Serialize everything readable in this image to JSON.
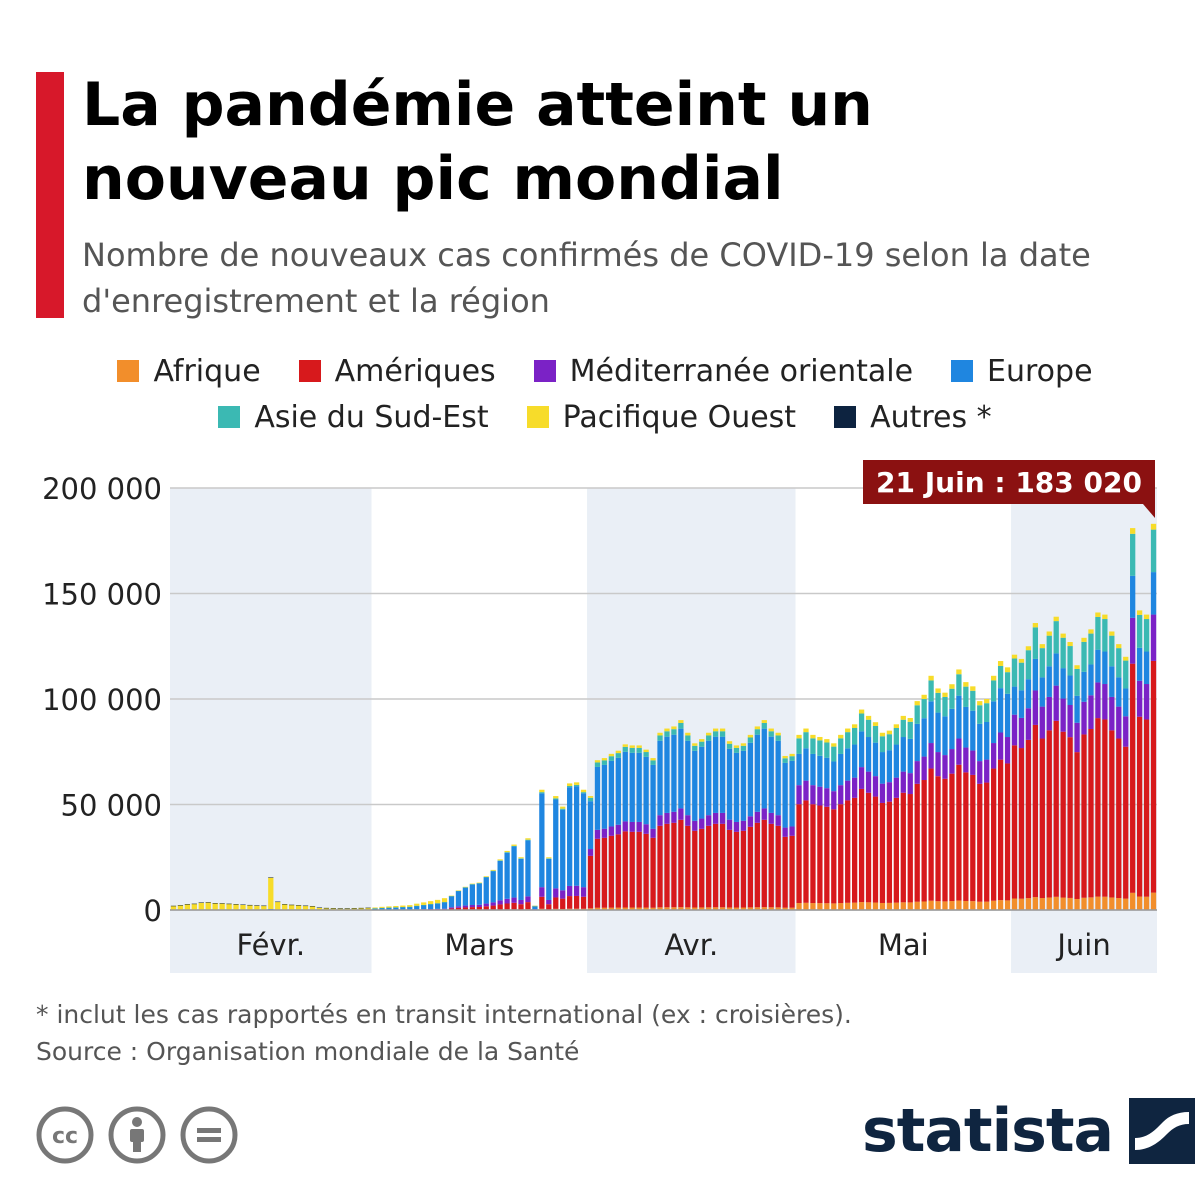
{
  "header": {
    "title": "La pandémie atteint un nouveau pic mondial",
    "subtitle": "Nombre de nouveaux cas confirmés de COVID-19 selon la date d'enregistrement et la région"
  },
  "legend": {
    "row1": [
      {
        "label": "Afrique",
        "color": "#f28e2b"
      },
      {
        "label": "Amériques",
        "color": "#d7191c"
      },
      {
        "label": "Méditerranée orientale",
        "color": "#7b22c6"
      },
      {
        "label": "Europe",
        "color": "#1f86e0"
      }
    ],
    "row2": [
      {
        "label": "Asie du Sud-Est",
        "color": "#3bb9b3"
      },
      {
        "label": "Pacifique Ouest",
        "color": "#f7dc2a"
      },
      {
        "label": "Autres *",
        "color": "#0d2340"
      }
    ]
  },
  "chart_data": {
    "type": "bar",
    "stacked": true,
    "x_start_label": "Févr.",
    "month_labels": [
      "Févr.",
      "Mars",
      "Avr.",
      "Mai",
      "Juin"
    ],
    "month_lengths": [
      29,
      31,
      30,
      31,
      21
    ],
    "ylim": [
      0,
      200000
    ],
    "y_ticks": [
      0,
      50000,
      100000,
      150000,
      200000
    ],
    "y_tick_labels": [
      "0",
      "50 000",
      "100 000",
      "150 000",
      "200 000"
    ],
    "grid": true,
    "annotation": {
      "text": "21 Juin : 183 020",
      "value": 183020
    },
    "series_names": [
      "Afrique",
      "Amériques",
      "Méditerranée orientale",
      "Europe",
      "Asie du Sud-Est",
      "Pacifique Ouest",
      "Autres *"
    ],
    "series_colors": [
      "#f28e2b",
      "#d7191c",
      "#7b22c6",
      "#1f86e0",
      "#3bb9b3",
      "#f7dc2a",
      "#0d2340"
    ],
    "totals": [
      2000,
      2300,
      2800,
      3000,
      3600,
      3700,
      3300,
      3200,
      3000,
      2800,
      2600,
      2400,
      2200,
      2100,
      15500,
      4000,
      2800,
      2500,
      2300,
      2100,
      1900,
      1200,
      1000,
      900,
      800,
      800,
      900,
      1000,
      1100,
      1200,
      1500,
      1700,
      1900,
      2100,
      2300,
      3000,
      3600,
      4200,
      4800,
      5600,
      6800,
      9300,
      11000,
      12500,
      13000,
      16000,
      19000,
      24000,
      28000,
      31000,
      25000,
      34000,
      2000,
      57000,
      25000,
      54000,
      49000,
      60000,
      60500,
      57000,
      54000,
      71000,
      72000,
      74000,
      75500,
      78500,
      78000,
      78000,
      76000,
      72000,
      84000,
      86000,
      87000,
      90000,
      84000,
      79000,
      81000,
      84000,
      86000,
      86000,
      80000,
      78000,
      79000,
      83000,
      87000,
      90000,
      86000,
      84000,
      73000,
      74000,
      83000,
      86000,
      83000,
      82000,
      81000,
      79000,
      83000,
      86000,
      88000,
      95000,
      92000,
      89000,
      84000,
      85000,
      88000,
      92000,
      91000,
      99000,
      102000,
      111000,
      105000,
      103000,
      107000,
      114000,
      108000,
      106000,
      99000,
      100000,
      111000,
      118000,
      115000,
      121000,
      119000,
      125000,
      136000,
      126000,
      132000,
      139000,
      131000,
      127000,
      116000,
      129000,
      133000,
      141000,
      140000,
      132000,
      126000,
      120000,
      181000,
      142000,
      140000,
      183020
    ],
    "region_shares": {
      "feb": [
        0.01,
        0.0,
        0.0,
        0.02,
        0.0,
        0.96,
        0.01
      ],
      "mar": [
        0.01,
        0.1,
        0.08,
        0.78,
        0.01,
        0.02,
        0.0
      ],
      "apr": [
        0.015,
        0.46,
        0.06,
        0.42,
        0.03,
        0.015,
        0.0
      ],
      "may": [
        0.04,
        0.57,
        0.11,
        0.18,
        0.09,
        0.02,
        0.0
      ],
      "jun": [
        0.045,
        0.6,
        0.12,
        0.11,
        0.11,
        0.015,
        0.0
      ]
    }
  },
  "footer": {
    "footnote": "* inclut les cas rapportés en transit international (ex : croisières).",
    "source": "Source : Organisation mondiale de la Santé",
    "brand": "statista"
  }
}
